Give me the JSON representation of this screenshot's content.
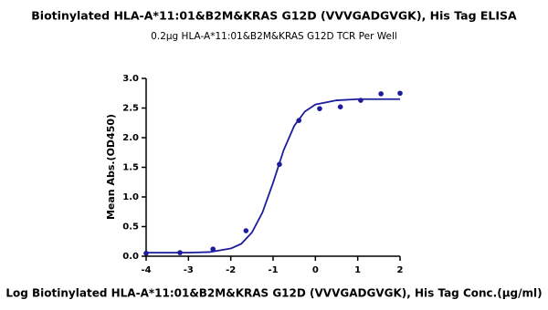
{
  "chart_data": {
    "type": "scatter",
    "title": "Biotinylated HLA-A*11:01&B2M&KRAS G12D (VVVGADGVGK), His Tag ELISA",
    "subtitle": "0.2μg HLA-A*11:01&B2M&KRAS G12D TCR Per Well",
    "x_label": "Log Biotinylated HLA-A*11:01&B2M&KRAS G12D (VVVGADGVGK), His Tag Conc.(μg/ml)",
    "y_label": "Mean Abs.(OD450)",
    "series": [
      {
        "type": "scatter",
        "color": "#1c1c9c",
        "x": [
          -4,
          -3.2,
          -2.42,
          -1.64,
          -0.85,
          -0.39,
          0.1,
          0.59,
          1.07,
          1.55,
          2.0
        ],
        "values": [
          0.05,
          0.06,
          0.12,
          0.43,
          1.55,
          2.29,
          2.49,
          2.52,
          2.63,
          2.74,
          2.75
        ]
      },
      {
        "type": "line",
        "color": "#1c1c9c",
        "x": [
          -4,
          -3.5,
          -3,
          -2.5,
          -2,
          -1.75,
          -1.5,
          -1.25,
          -1,
          -0.75,
          -0.5,
          -0.25,
          0,
          0.5,
          1,
          1.5,
          2
        ],
        "values": [
          0.06,
          0.06,
          0.06,
          0.07,
          0.13,
          0.21,
          0.4,
          0.74,
          1.24,
          1.79,
          2.2,
          2.44,
          2.56,
          2.63,
          2.65,
          2.65,
          2.65
        ]
      }
    ],
    "xlim": [
      -4,
      2
    ],
    "xticks": [
      -4,
      -3,
      -2,
      -1,
      0,
      1,
      2
    ],
    "ylim": [
      0,
      3
    ],
    "yticks": [
      {
        "value": 0,
        "label": "0.0"
      },
      {
        "value": 0.5,
        "label": "0.5"
      },
      {
        "value": 1,
        "label": "1.0"
      },
      {
        "value": 1.5,
        "label": "1.5"
      },
      {
        "value": 2,
        "label": "2.0"
      },
      {
        "value": 2.5,
        "label": "2.5"
      },
      {
        "value": 3,
        "label": "3.0"
      }
    ]
  }
}
